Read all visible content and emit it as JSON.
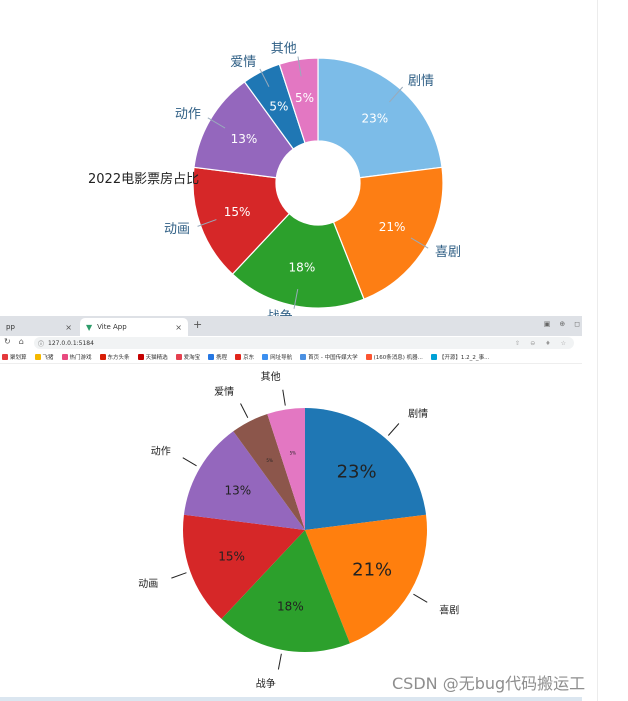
{
  "chart_data": [
    {
      "type": "pie",
      "variant": "donut",
      "title": "2022电影票房占比",
      "categories": [
        "剧情",
        "喜剧",
        "战争",
        "动画",
        "动作",
        "爱情",
        "其他"
      ],
      "values": [
        23,
        21,
        18,
        15,
        13,
        5,
        5
      ],
      "value_labels": [
        "23%",
        "21%",
        "18%",
        "15%",
        "13%",
        "5%",
        "5%"
      ],
      "colors": [
        "#7cbce8",
        "#fd7e14",
        "#2ca02c",
        "#d62728",
        "#9467bd",
        "#1f77b4",
        "#e377c2"
      ],
      "label_color": "#2f5f85",
      "start_angle_deg": 0,
      "legend": "none"
    },
    {
      "type": "pie",
      "title": "",
      "categories": [
        "剧情",
        "喜剧",
        "战争",
        "动画",
        "动作",
        "爱情",
        "其他"
      ],
      "values": [
        23,
        21,
        18,
        15,
        13,
        5,
        5
      ],
      "value_labels": [
        "23%",
        "21%",
        "18%",
        "15%",
        "13%",
        "5%",
        "5%"
      ],
      "colors": [
        "#1f77b4",
        "#ff7f0e",
        "#2ca02c",
        "#d62728",
        "#9467bd",
        "#8c564b",
        "#e377c2"
      ],
      "label_color": "#222222",
      "start_angle_deg": 0,
      "legend": "none"
    }
  ],
  "top_chart": {
    "title": "2022电影票房占比",
    "bottom_label_partial": "战争"
  },
  "browser": {
    "tabs": [
      {
        "label": "pp",
        "active": false
      },
      {
        "label": "Vite App",
        "active": true
      }
    ],
    "new_tab": "+",
    "close_glyph": "×",
    "url": "127.0.0.1:5184",
    "bookmarks": [
      {
        "label": "聚划算",
        "color": "#e4393c"
      },
      {
        "label": "飞猪",
        "color": "#f5b800"
      },
      {
        "label": "热门游戏",
        "color": "#e84a7f"
      },
      {
        "label": "东方头条",
        "color": "#d81e06"
      },
      {
        "label": "天猫精选",
        "color": "#c40000"
      },
      {
        "label": "爱淘宝",
        "color": "#e5404f"
      },
      {
        "label": "携程",
        "color": "#2577e3"
      },
      {
        "label": "京东",
        "color": "#e1251b"
      },
      {
        "label": "网址导航",
        "color": "#3b8ff0"
      },
      {
        "label": "首页 - 中国传媒大学",
        "color": "#4a90e2"
      },
      {
        "label": "(160条消息) 机器...",
        "color": "#fc5531"
      },
      {
        "label": "【开源】1.2_2_事...",
        "color": "#00a1d6"
      }
    ]
  },
  "watermark": "CSDN @无bug代码搬运工"
}
